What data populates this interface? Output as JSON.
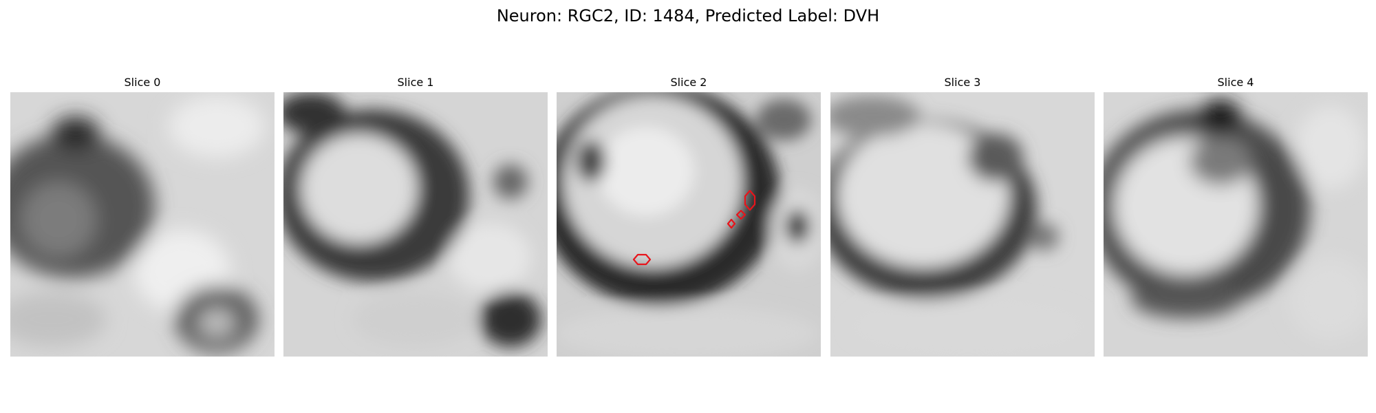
{
  "figure": {
    "title": "Neuron: RGC2, ID: 1484, Predicted Label: DVH"
  },
  "panels": [
    {
      "title": "Slice 0"
    },
    {
      "title": "Slice 1"
    },
    {
      "title": "Slice 2"
    },
    {
      "title": "Slice 3"
    },
    {
      "title": "Slice 4"
    }
  ],
  "colors": {
    "contour": "#e8141b",
    "background": "#ffffff"
  }
}
